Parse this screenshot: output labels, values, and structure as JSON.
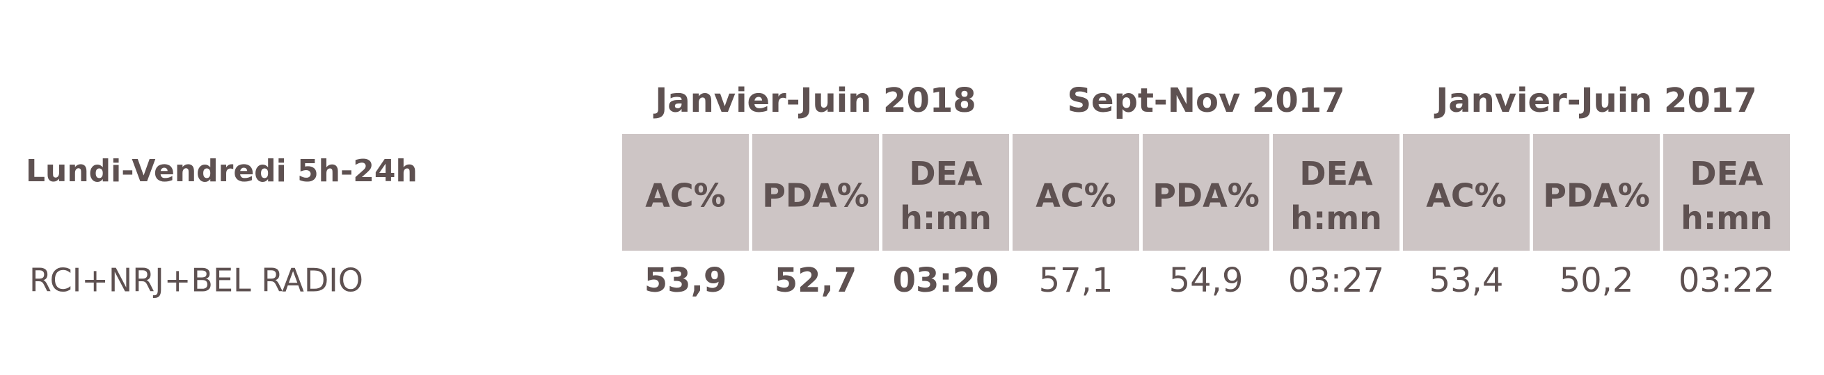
{
  "table": {
    "row_header": "Lundi-Vendredi 5h-24h",
    "groups": [
      {
        "title": "Janvier-Juin 2018",
        "columns": [
          "AC%",
          "PDA%",
          "DEA h:mn"
        ]
      },
      {
        "title": "Sept-Nov 2017",
        "columns": [
          "AC%",
          "PDA%",
          "DEA h:mn"
        ]
      },
      {
        "title": "Janvier-Juin 2017",
        "columns": [
          "AC%",
          "PDA%",
          "DEA h:mn"
        ]
      }
    ],
    "rows": [
      {
        "label": "RCI+NRJ+BEL RADIO",
        "values": [
          "53,9",
          "52,7",
          "03:20",
          "57,1",
          "54,9",
          "03:27",
          "53,4",
          "50,2",
          "03:22"
        ]
      }
    ]
  }
}
